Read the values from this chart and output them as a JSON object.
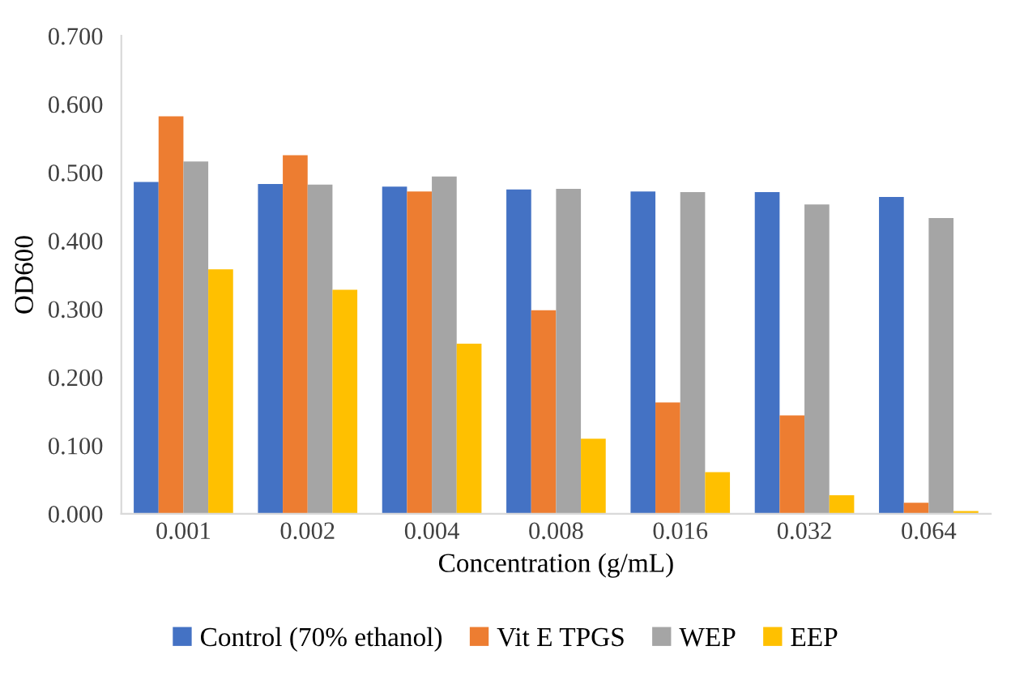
{
  "chart_data": {
    "type": "bar",
    "xlabel": "Concentration (g/mL)",
    "ylabel": "OD600",
    "categories": [
      "0.001",
      "0.002",
      "0.004",
      "0.008",
      "0.016",
      "0.032",
      "0.064"
    ],
    "series": [
      {
        "name": "Control (70% ethanol)",
        "color": "#4472c4",
        "values": [
          0.486,
          0.483,
          0.479,
          0.475,
          0.472,
          0.471,
          0.464
        ]
      },
      {
        "name": "Vit E TPGS",
        "color": "#ed7d31",
        "values": [
          0.582,
          0.525,
          0.472,
          0.298,
          0.163,
          0.144,
          0.016
        ]
      },
      {
        "name": "WEP",
        "color": "#a5a5a5",
        "values": [
          0.516,
          0.482,
          0.494,
          0.476,
          0.471,
          0.453,
          0.433
        ]
      },
      {
        "name": "EEP",
        "color": "#ffc000",
        "values": [
          0.358,
          0.328,
          0.249,
          0.11,
          0.061,
          0.027,
          0.004
        ]
      }
    ],
    "ylim": [
      0,
      0.7
    ],
    "yticks": [
      {
        "value": 0,
        "label": "0.000"
      },
      {
        "value": 0.1,
        "label": "0.100"
      },
      {
        "value": 0.2,
        "label": "0.200"
      },
      {
        "value": 0.3,
        "label": "0.300"
      },
      {
        "value": 0.4,
        "label": "0.400"
      },
      {
        "value": 0.5,
        "label": "0.500"
      },
      {
        "value": 0.6,
        "label": "0.600"
      },
      {
        "value": 0.7,
        "label": "0.700"
      }
    ],
    "grid": false,
    "legend": "bottom"
  }
}
